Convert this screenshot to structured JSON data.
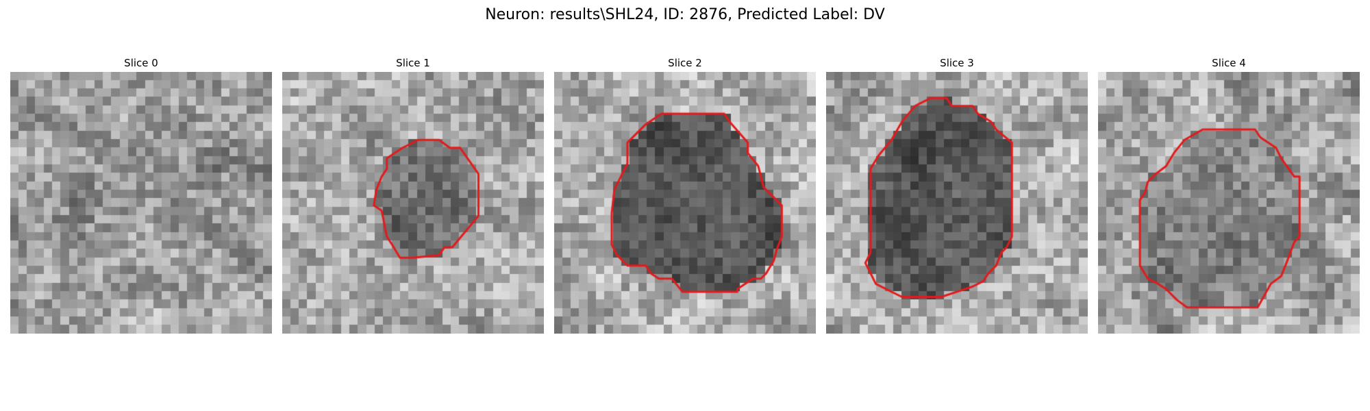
{
  "figure": {
    "title": "Neuron: results\\SHL24, ID: 2876, Predicted Label: DV"
  },
  "panels": [
    {
      "title": "Slice 0",
      "has_contour": false,
      "darkness": 0.0,
      "seed": 11
    },
    {
      "title": "Slice 1",
      "has_contour": true,
      "darkness": 0.45,
      "seed": 23
    },
    {
      "title": "Slice 2",
      "has_contour": true,
      "darkness": 0.75,
      "seed": 37
    },
    {
      "title": "Slice 3",
      "has_contour": true,
      "darkness": 0.7,
      "seed": 51
    },
    {
      "title": "Slice 4",
      "has_contour": true,
      "darkness": 0.3,
      "seed": 67
    }
  ],
  "colors": {
    "contour": "#e41a1c",
    "background": "#ffffff"
  },
  "image_grid": {
    "pixels_per_side": 31,
    "colormap": "gray"
  }
}
